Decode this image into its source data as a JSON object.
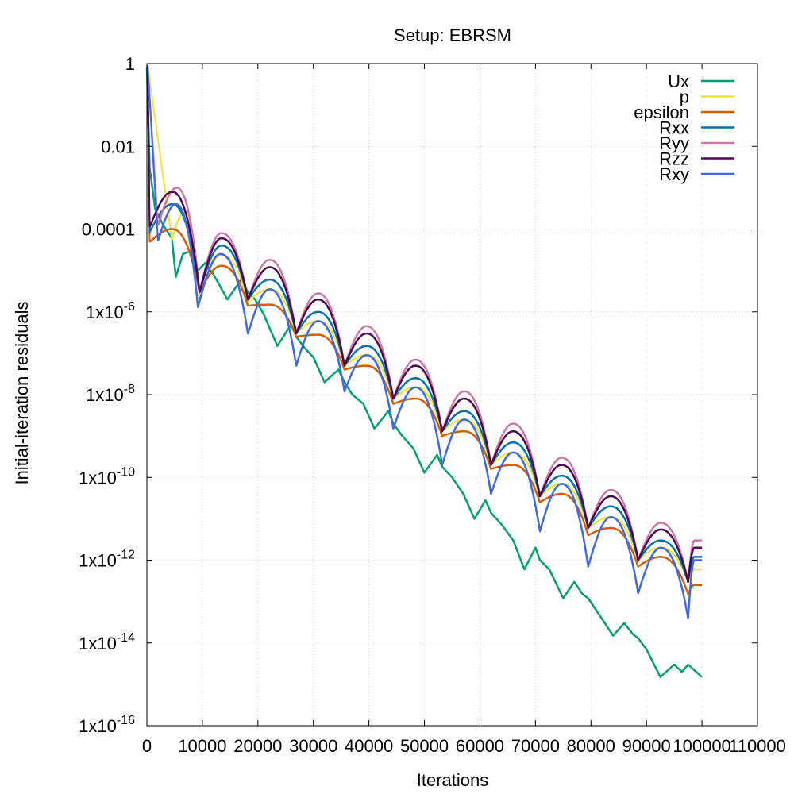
{
  "chart_data": {
    "type": "line",
    "title": "Setup: EBRSM",
    "xlabel": "Iterations",
    "ylabel": "Initial-iteration residuals",
    "xlim": [
      0,
      110000
    ],
    "ylim": [
      1e-16,
      1
    ],
    "yscale": "log",
    "grid": true,
    "legend_position": "top-right",
    "x_ticks": [
      {
        "value": 0,
        "label": "0"
      },
      {
        "value": 10000,
        "label": "10000"
      },
      {
        "value": 20000,
        "label": "20000"
      },
      {
        "value": 30000,
        "label": "30000"
      },
      {
        "value": 40000,
        "label": "40000"
      },
      {
        "value": 50000,
        "label": "50000"
      },
      {
        "value": 60000,
        "label": "60000"
      },
      {
        "value": 70000,
        "label": "70000"
      },
      {
        "value": 80000,
        "label": "80000"
      },
      {
        "value": 90000,
        "label": "90000"
      },
      {
        "value": 100000,
        "label": "100000"
      },
      {
        "value": 110000,
        "label": "110000"
      }
    ],
    "y_ticks": [
      {
        "value": 1,
        "base": "1",
        "exp": ""
      },
      {
        "value": 0.01,
        "base": "0.01",
        "exp": ""
      },
      {
        "value": 0.0001,
        "base": "0.0001",
        "exp": ""
      },
      {
        "value": 1e-06,
        "base": "1x10",
        "exp": "-6"
      },
      {
        "value": 1e-08,
        "base": "1x10",
        "exp": "-8"
      },
      {
        "value": 1e-10,
        "base": "1x10",
        "exp": "-10"
      },
      {
        "value": 1e-12,
        "base": "1x10",
        "exp": "-12"
      },
      {
        "value": 1e-14,
        "base": "1x10",
        "exp": "-14"
      },
      {
        "value": 1e-16,
        "base": "1x10",
        "exp": "-16"
      }
    ],
    "series": [
      {
        "name": "Ux",
        "color": "#009e73",
        "x": [
          0,
          500,
          1500,
          3000,
          4500,
          5200,
          6500,
          8000,
          9200,
          10500,
          12000,
          14500,
          17000,
          18200,
          19500,
          21000,
          23500,
          26000,
          26900,
          28500,
          30000,
          32000,
          34500,
          35600,
          37000,
          39000,
          41000,
          43500,
          44400,
          46000,
          48000,
          50000,
          52300,
          53200,
          55000,
          57000,
          59000,
          61000,
          62000,
          64000,
          66000,
          68000,
          70000,
          70800,
          72500,
          75000,
          77000,
          78500,
          79500,
          81000,
          84000,
          86000,
          87600,
          88500,
          90000,
          92500,
          95000,
          96400,
          97500,
          100000
        ],
        "y": [
          0.8,
          0.003,
          0.0003,
          0.00012,
          6e-05,
          7e-06,
          2.5e-05,
          3e-05,
          1e-05,
          1.5e-05,
          8e-06,
          2e-06,
          6e-06,
          3e-06,
          2e-06,
          9e-07,
          1.5e-07,
          5e-07,
          2.5e-07,
          1.3e-07,
          8e-08,
          2e-08,
          4e-08,
          2e-08,
          1e-08,
          6e-09,
          1.5e-09,
          4e-09,
          2e-09,
          1e-09,
          5e-10,
          1.3e-10,
          3.5e-10,
          1.8e-10,
          1e-10,
          4e-11,
          1e-11,
          2.8e-11,
          1.4e-11,
          7e-12,
          3e-12,
          6e-13,
          2e-12,
          1e-12,
          6e-13,
          1.2e-13,
          3e-13,
          1.5e-13,
          1.2e-13,
          6e-14,
          1.5e-14,
          3e-14,
          1.6e-14,
          1.3e-14,
          7e-15,
          1.5e-15,
          3e-15,
          2e-15,
          3e-15,
          1.5e-15
        ]
      },
      {
        "name": "p",
        "color": "#f0e442",
        "arches": [
          {
            "x0": 4500,
            "x1": 9500,
            "peak": 0.00025,
            "end": 2e-06
          },
          {
            "x0": 9500,
            "x1": 18200,
            "peak": 2.4e-05,
            "end": 1.8e-06
          },
          {
            "x0": 18200,
            "x1": 26900,
            "peak": 3.5e-06,
            "end": 3.2e-07
          },
          {
            "x0": 26900,
            "x1": 35600,
            "peak": 6e-07,
            "end": 5e-08
          },
          {
            "x0": 35600,
            "x1": 44400,
            "peak": 9e-08,
            "end": 8e-09
          },
          {
            "x0": 44400,
            "x1": 53200,
            "peak": 1.5e-08,
            "end": 1.3e-09
          },
          {
            "x0": 53200,
            "x1": 62000,
            "peak": 2.5e-09,
            "end": 2e-10
          },
          {
            "x0": 62000,
            "x1": 70800,
            "peak": 4e-10,
            "end": 3.5e-11
          },
          {
            "x0": 70800,
            "x1": 79500,
            "peak": 7e-11,
            "end": 6e-12
          },
          {
            "x0": 79500,
            "x1": 88500,
            "peak": 1.1e-11,
            "end": 1e-12
          },
          {
            "x0": 88500,
            "x1": 97500,
            "peak": 2e-12,
            "end": 3e-13
          },
          {
            "x0": 97500,
            "x1": 100000,
            "peak": 6e-13,
            "end": 6e-13
          }
        ]
      },
      {
        "name": "epsilon",
        "color": "#d55e00",
        "arches": [
          {
            "x0": 500,
            "x1": 9500,
            "peak": 0.0001,
            "end": 3e-06
          },
          {
            "x0": 9500,
            "x1": 18200,
            "peak": 1.3e-05,
            "end": 1.4e-06
          },
          {
            "x0": 18200,
            "x1": 26900,
            "peak": 1.5e-06,
            "end": 2.5e-07
          },
          {
            "x0": 26900,
            "x1": 35600,
            "peak": 2.8e-07,
            "end": 4e-08
          },
          {
            "x0": 35600,
            "x1": 44400,
            "peak": 5e-08,
            "end": 6e-09
          },
          {
            "x0": 44400,
            "x1": 53200,
            "peak": 8e-09,
            "end": 1e-09
          },
          {
            "x0": 53200,
            "x1": 62000,
            "peak": 1.3e-09,
            "end": 1.6e-10
          },
          {
            "x0": 62000,
            "x1": 70800,
            "peak": 2e-10,
            "end": 2.5e-11
          },
          {
            "x0": 70800,
            "x1": 79500,
            "peak": 4e-11,
            "end": 4e-12
          },
          {
            "x0": 79500,
            "x1": 88500,
            "peak": 6e-12,
            "end": 7e-13
          },
          {
            "x0": 88500,
            "x1": 97500,
            "peak": 1.2e-12,
            "end": 1.5e-13
          },
          {
            "x0": 97500,
            "x1": 100000,
            "peak": 2.5e-13,
            "end": 2.5e-13
          }
        ]
      },
      {
        "name": "Rxx",
        "color": "#0072b2",
        "arches": [
          {
            "x0": 500,
            "x1": 9500,
            "peak": 0.0004,
            "end": 3e-06
          },
          {
            "x0": 9500,
            "x1": 18200,
            "peak": 4e-05,
            "end": 2e-06
          },
          {
            "x0": 18200,
            "x1": 26900,
            "peak": 6e-06,
            "end": 3e-07
          },
          {
            "x0": 26900,
            "x1": 35600,
            "peak": 1e-06,
            "end": 5e-08
          },
          {
            "x0": 35600,
            "x1": 44400,
            "peak": 1.5e-07,
            "end": 8e-09
          },
          {
            "x0": 44400,
            "x1": 53200,
            "peak": 2.5e-08,
            "end": 1.3e-09
          },
          {
            "x0": 53200,
            "x1": 62000,
            "peak": 4e-09,
            "end": 2e-10
          },
          {
            "x0": 62000,
            "x1": 70800,
            "peak": 7e-10,
            "end": 3.5e-11
          },
          {
            "x0": 70800,
            "x1": 79500,
            "peak": 1.1e-10,
            "end": 6e-12
          },
          {
            "x0": 79500,
            "x1": 88500,
            "peak": 2e-11,
            "end": 1e-12
          },
          {
            "x0": 88500,
            "x1": 97500,
            "peak": 3e-12,
            "end": 3e-13
          },
          {
            "x0": 97500,
            "x1": 100000,
            "peak": 1.2e-12,
            "end": 1.2e-12
          }
        ]
      },
      {
        "name": "Ryy",
        "color": "#cc79a7",
        "arches": [
          {
            "x0": 2000,
            "x1": 9500,
            "peak": 0.001,
            "end": 3e-06
          },
          {
            "x0": 9500,
            "x1": 18200,
            "peak": 8e-05,
            "end": 2e-06
          },
          {
            "x0": 18200,
            "x1": 26900,
            "peak": 1.8e-05,
            "end": 3e-07
          },
          {
            "x0": 26900,
            "x1": 35600,
            "peak": 2.8e-06,
            "end": 5e-08
          },
          {
            "x0": 35600,
            "x1": 44400,
            "peak": 4.5e-07,
            "end": 8e-09
          },
          {
            "x0": 44400,
            "x1": 53200,
            "peak": 7e-08,
            "end": 1.3e-09
          },
          {
            "x0": 53200,
            "x1": 62000,
            "peak": 1.2e-08,
            "end": 2e-10
          },
          {
            "x0": 62000,
            "x1": 70800,
            "peak": 2e-09,
            "end": 3.5e-11
          },
          {
            "x0": 70800,
            "x1": 79500,
            "peak": 3e-10,
            "end": 6e-12
          },
          {
            "x0": 79500,
            "x1": 88500,
            "peak": 5e-11,
            "end": 1e-12
          },
          {
            "x0": 88500,
            "x1": 97500,
            "peak": 8e-12,
            "end": 3e-13
          },
          {
            "x0": 97500,
            "x1": 100000,
            "peak": 3e-12,
            "end": 3e-12
          }
        ]
      },
      {
        "name": "Rzz",
        "color": "#4b0a50",
        "arches": [
          {
            "x0": 500,
            "x1": 9500,
            "peak": 0.0008,
            "end": 3e-06
          },
          {
            "x0": 9500,
            "x1": 18200,
            "peak": 6e-05,
            "end": 2e-06
          },
          {
            "x0": 18200,
            "x1": 26900,
            "peak": 1.2e-05,
            "end": 3e-07
          },
          {
            "x0": 26900,
            "x1": 35600,
            "peak": 2e-06,
            "end": 5e-08
          },
          {
            "x0": 35600,
            "x1": 44400,
            "peak": 3e-07,
            "end": 8e-09
          },
          {
            "x0": 44400,
            "x1": 53200,
            "peak": 5e-08,
            "end": 1.3e-09
          },
          {
            "x0": 53200,
            "x1": 62000,
            "peak": 8e-09,
            "end": 2e-10
          },
          {
            "x0": 62000,
            "x1": 70800,
            "peak": 1.3e-09,
            "end": 3.5e-11
          },
          {
            "x0": 70800,
            "x1": 79500,
            "peak": 2e-10,
            "end": 6e-12
          },
          {
            "x0": 79500,
            "x1": 88500,
            "peak": 3.5e-11,
            "end": 1e-12
          },
          {
            "x0": 88500,
            "x1": 97500,
            "peak": 5.5e-12,
            "end": 3e-13
          },
          {
            "x0": 97500,
            "x1": 100000,
            "peak": 2e-12,
            "end": 2e-12
          }
        ]
      },
      {
        "name": "Rxy",
        "color": "#4169e1",
        "arches": [
          {
            "x0": 2000,
            "x1": 9200,
            "peak": 0.0004,
            "end": 1.3e-06
          },
          {
            "x0": 9200,
            "x1": 18200,
            "peak": 2.5e-05,
            "end": 3e-07
          },
          {
            "x0": 18200,
            "x1": 26900,
            "peak": 3.5e-06,
            "end": 5e-08
          },
          {
            "x0": 26900,
            "x1": 35600,
            "peak": 6e-07,
            "end": 1.2e-08
          },
          {
            "x0": 35600,
            "x1": 44400,
            "peak": 9e-08,
            "end": 1.5e-09
          },
          {
            "x0": 44400,
            "x1": 53200,
            "peak": 1.5e-08,
            "end": 2e-10
          },
          {
            "x0": 53200,
            "x1": 62000,
            "peak": 2.5e-09,
            "end": 4e-11
          },
          {
            "x0": 62000,
            "x1": 70800,
            "peak": 4e-10,
            "end": 5e-12
          },
          {
            "x0": 70800,
            "x1": 79500,
            "peak": 7e-11,
            "end": 7e-13
          },
          {
            "x0": 79500,
            "x1": 88500,
            "peak": 1.1e-11,
            "end": 1.6e-13
          },
          {
            "x0": 88500,
            "x1": 97500,
            "peak": 2e-12,
            "end": 4e-14
          },
          {
            "x0": 97500,
            "x1": 100000,
            "peak": 1e-12,
            "end": 1e-12
          }
        ]
      }
    ]
  }
}
